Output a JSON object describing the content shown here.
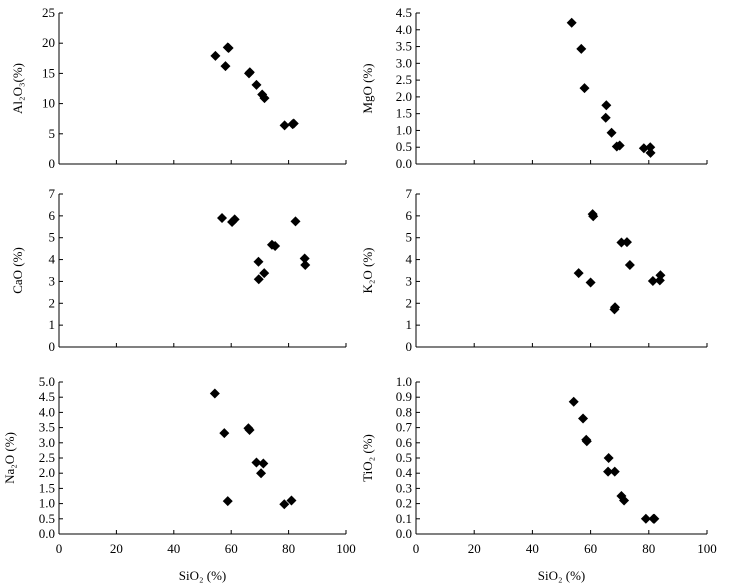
{
  "chart_data": [
    {
      "type": "scatter",
      "title": "",
      "xlabel": "",
      "ylabel": "Al₂O₃(%)",
      "xlim": [
        0,
        100
      ],
      "ylim": [
        0,
        25
      ],
      "xticks": [
        0,
        20,
        40,
        60,
        80,
        100
      ],
      "yticks": [
        0,
        5,
        10,
        15,
        20,
        25
      ],
      "show_xtick_labels": false,
      "grid": false,
      "points": [
        {
          "x": 54.5,
          "y": 17.9
        },
        {
          "x": 58.0,
          "y": 16.2
        },
        {
          "x": 58.8,
          "y": 19.3
        },
        {
          "x": 59.1,
          "y": 19.2
        },
        {
          "x": 66.2,
          "y": 15.0
        },
        {
          "x": 66.5,
          "y": 15.2
        },
        {
          "x": 68.8,
          "y": 13.1
        },
        {
          "x": 70.8,
          "y": 11.5
        },
        {
          "x": 71.6,
          "y": 10.9
        },
        {
          "x": 78.6,
          "y": 6.4
        },
        {
          "x": 81.4,
          "y": 6.6
        },
        {
          "x": 81.8,
          "y": 6.7
        }
      ]
    },
    {
      "type": "scatter",
      "title": "",
      "xlabel": "",
      "ylabel": "MgO (%)",
      "xlim": [
        0,
        100
      ],
      "ylim": [
        0,
        4.5
      ],
      "xticks": [
        0,
        20,
        40,
        60,
        80,
        100
      ],
      "yticks": [
        0,
        0.5,
        1.0,
        1.5,
        2.0,
        2.5,
        3.0,
        3.5,
        4.0,
        4.5
      ],
      "show_xtick_labels": false,
      "grid": false,
      "points": [
        {
          "x": 53.5,
          "y": 4.21
        },
        {
          "x": 56.8,
          "y": 3.43
        },
        {
          "x": 57.9,
          "y": 2.26
        },
        {
          "x": 65.4,
          "y": 1.75
        },
        {
          "x": 65.2,
          "y": 1.38
        },
        {
          "x": 67.2,
          "y": 0.93
        },
        {
          "x": 69.0,
          "y": 0.52
        },
        {
          "x": 70.0,
          "y": 0.55
        },
        {
          "x": 78.3,
          "y": 0.47
        },
        {
          "x": 80.5,
          "y": 0.5
        },
        {
          "x": 80.6,
          "y": 0.33
        }
      ]
    },
    {
      "type": "scatter",
      "title": "",
      "xlabel": "",
      "ylabel": "CaO (%)",
      "xlim": [
        0,
        100
      ],
      "ylim": [
        0,
        7
      ],
      "xticks": [
        0,
        20,
        40,
        60,
        80,
        100
      ],
      "yticks": [
        0,
        1,
        2,
        3,
        4,
        5,
        6,
        7
      ],
      "show_xtick_labels": false,
      "grid": false,
      "points": [
        {
          "x": 56.8,
          "y": 5.9
        },
        {
          "x": 60.3,
          "y": 5.72
        },
        {
          "x": 61.2,
          "y": 5.84
        },
        {
          "x": 69.5,
          "y": 3.9
        },
        {
          "x": 69.6,
          "y": 3.1
        },
        {
          "x": 71.5,
          "y": 3.38
        },
        {
          "x": 74.2,
          "y": 4.68
        },
        {
          "x": 75.3,
          "y": 4.62
        },
        {
          "x": 82.4,
          "y": 5.75
        },
        {
          "x": 85.6,
          "y": 4.05
        },
        {
          "x": 85.8,
          "y": 3.75
        }
      ]
    },
    {
      "type": "scatter",
      "title": "",
      "xlabel": "",
      "ylabel": "K₂O (%)",
      "xlim": [
        0,
        100
      ],
      "ylim": [
        0,
        7
      ],
      "xticks": [
        0,
        20,
        40,
        60,
        80,
        100
      ],
      "yticks": [
        0,
        1,
        2,
        3,
        4,
        5,
        6,
        7
      ],
      "show_xtick_labels": false,
      "grid": false,
      "points": [
        {
          "x": 55.9,
          "y": 3.38
        },
        {
          "x": 60.0,
          "y": 2.95
        },
        {
          "x": 60.7,
          "y": 6.08
        },
        {
          "x": 60.9,
          "y": 5.98
        },
        {
          "x": 68.2,
          "y": 1.72
        },
        {
          "x": 68.4,
          "y": 1.82
        },
        {
          "x": 70.6,
          "y": 4.78
        },
        {
          "x": 72.5,
          "y": 4.8
        },
        {
          "x": 73.5,
          "y": 3.75
        },
        {
          "x": 81.4,
          "y": 3.02
        },
        {
          "x": 83.8,
          "y": 3.05
        },
        {
          "x": 84.0,
          "y": 3.28
        }
      ]
    },
    {
      "type": "scatter",
      "title": "",
      "xlabel": "SiO₂ (%)",
      "ylabel": "Na₂O (%)",
      "xlim": [
        0,
        100
      ],
      "ylim": [
        0,
        5.0
      ],
      "xticks": [
        0,
        20,
        40,
        60,
        80,
        100
      ],
      "yticks": [
        0,
        0.5,
        1.0,
        1.5,
        2.0,
        2.5,
        3.0,
        3.5,
        4.0,
        4.5,
        5.0
      ],
      "show_xtick_labels": true,
      "grid": false,
      "points": [
        {
          "x": 54.3,
          "y": 4.62
        },
        {
          "x": 57.6,
          "y": 3.32
        },
        {
          "x": 58.8,
          "y": 1.08
        },
        {
          "x": 66.0,
          "y": 3.48
        },
        {
          "x": 66.4,
          "y": 3.42
        },
        {
          "x": 68.8,
          "y": 2.35
        },
        {
          "x": 70.4,
          "y": 2.0
        },
        {
          "x": 71.2,
          "y": 2.32
        },
        {
          "x": 78.5,
          "y": 0.98
        },
        {
          "x": 81.0,
          "y": 1.1
        }
      ]
    },
    {
      "type": "scatter",
      "title": "",
      "xlabel": "SiO₂ (%)",
      "ylabel": "TiO₂ (%)",
      "xlim": [
        0,
        100
      ],
      "ylim": [
        0,
        1.0
      ],
      "xticks": [
        0,
        20,
        40,
        60,
        80,
        100
      ],
      "yticks": [
        0,
        0.1,
        0.2,
        0.3,
        0.4,
        0.5,
        0.6,
        0.7,
        0.8,
        0.9,
        1.0
      ],
      "show_xtick_labels": true,
      "grid": false,
      "points": [
        {
          "x": 54.2,
          "y": 0.87
        },
        {
          "x": 57.4,
          "y": 0.76
        },
        {
          "x": 58.5,
          "y": 0.62
        },
        {
          "x": 58.7,
          "y": 0.61
        },
        {
          "x": 66.2,
          "y": 0.5
        },
        {
          "x": 66.0,
          "y": 0.41
        },
        {
          "x": 68.3,
          "y": 0.41
        },
        {
          "x": 70.6,
          "y": 0.25
        },
        {
          "x": 71.5,
          "y": 0.22
        },
        {
          "x": 79.0,
          "y": 0.1
        },
        {
          "x": 81.6,
          "y": 0.1
        },
        {
          "x": 81.9,
          "y": 0.1
        }
      ]
    }
  ]
}
